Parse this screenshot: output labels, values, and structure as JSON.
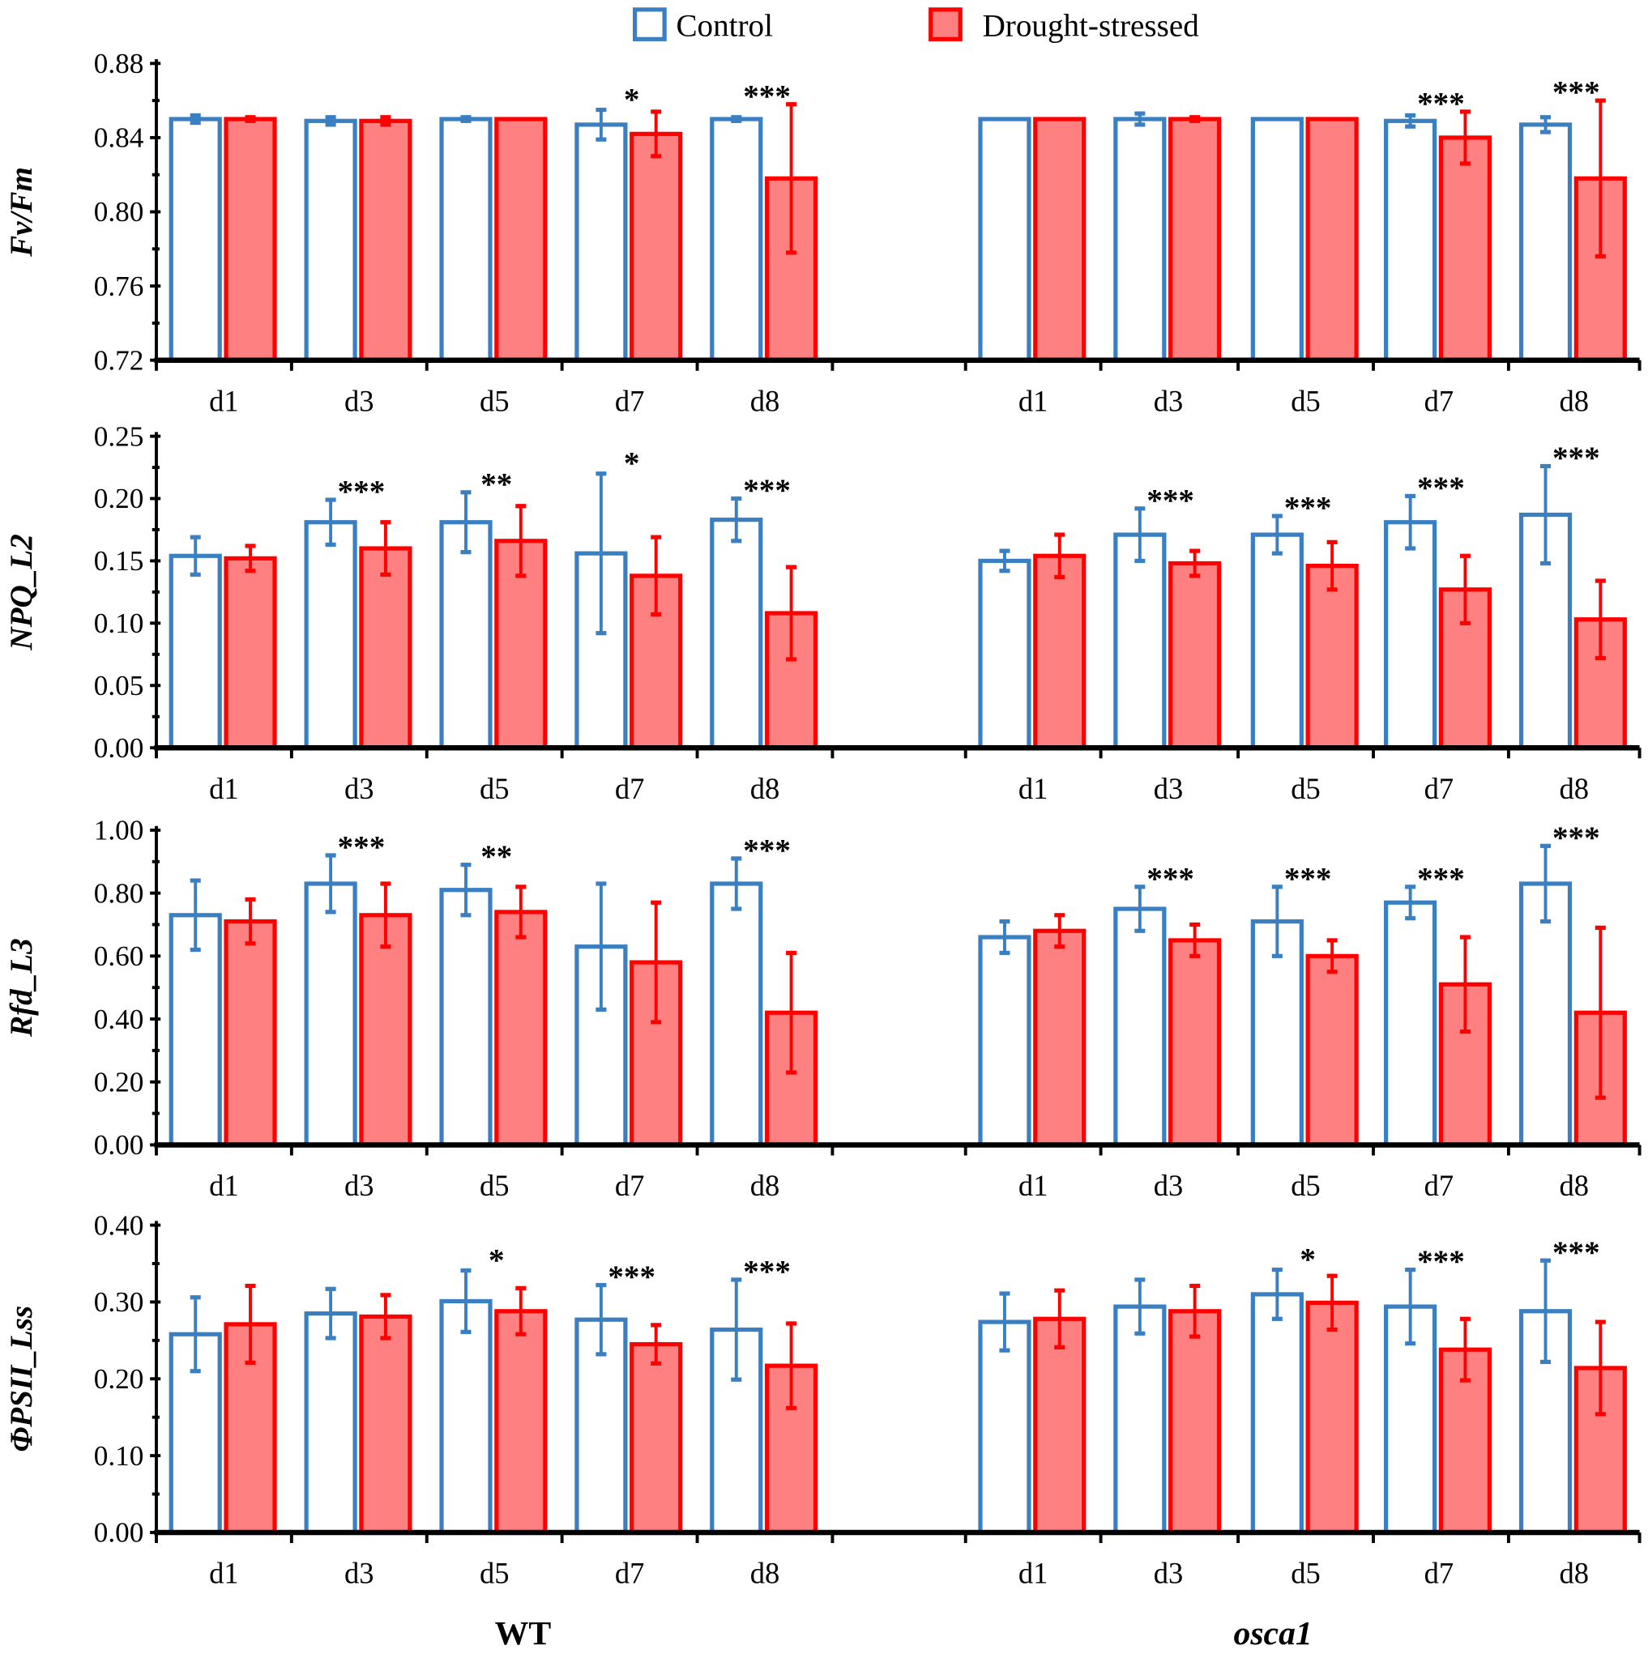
{
  "colors": {
    "control": "#3a7fc1",
    "drought_stroke": "#ff0000",
    "drought_fill": "#ff8080"
  },
  "legend": {
    "control": "Control",
    "drought": "Drought-stressed"
  },
  "groups": [
    "WT",
    "osca1"
  ],
  "chart_data": [
    {
      "type": "bar",
      "ylabel": "Fv/Fm",
      "ylim": [
        0.72,
        0.88
      ],
      "yticks": [
        "0.72",
        "0.76",
        "0.80",
        "0.84",
        "0.88"
      ],
      "ytick_values": [
        0.72,
        0.76,
        0.8,
        0.84,
        0.88
      ],
      "categories": [
        "d1",
        "d3",
        "d5",
        "d7",
        "d8"
      ],
      "series": [
        {
          "name": "Control",
          "group": "WT",
          "values": [
            0.85,
            0.849,
            0.85,
            0.847,
            0.85
          ],
          "errors": [
            0.002,
            0.002,
            0.001,
            0.008,
            0.001
          ]
        },
        {
          "name": "Drought-stressed",
          "group": "WT",
          "values": [
            0.85,
            0.849,
            0.85,
            0.842,
            0.818
          ],
          "errors": [
            0.001,
            0.002,
            0.0,
            0.012,
            0.04
          ]
        },
        {
          "name": "Control",
          "group": "osca1",
          "values": [
            0.85,
            0.85,
            0.85,
            0.849,
            0.847
          ],
          "errors": [
            0.0,
            0.003,
            0.0,
            0.003,
            0.004
          ]
        },
        {
          "name": "Drought-stressed",
          "group": "osca1",
          "values": [
            0.85,
            0.85,
            0.85,
            0.84,
            0.818
          ],
          "errors": [
            0.0,
            0.001,
            0.0,
            0.014,
            0.042
          ]
        }
      ],
      "significance": {
        "WT": [
          "",
          "",
          "",
          "*",
          "***"
        ],
        "osca1": [
          "",
          "",
          "",
          "***",
          "***"
        ]
      }
    },
    {
      "type": "bar",
      "ylabel": "NPQ_L2",
      "ylim": [
        0,
        0.25
      ],
      "yticks": [
        "0.00",
        "0.05",
        "0.10",
        "0.15",
        "0.20",
        "0.25"
      ],
      "ytick_values": [
        0,
        0.05,
        0.1,
        0.15,
        0.2,
        0.25
      ],
      "categories": [
        "d1",
        "d3",
        "d5",
        "d7",
        "d8"
      ],
      "series": [
        {
          "name": "Control",
          "group": "WT",
          "values": [
            0.154,
            0.181,
            0.181,
            0.156,
            0.183
          ],
          "errors": [
            0.015,
            0.018,
            0.024,
            0.064,
            0.017
          ]
        },
        {
          "name": "Drought-stressed",
          "group": "WT",
          "values": [
            0.152,
            0.16,
            0.166,
            0.138,
            0.108
          ],
          "errors": [
            0.01,
            0.021,
            0.028,
            0.031,
            0.037
          ]
        },
        {
          "name": "Control",
          "group": "osca1",
          "values": [
            0.15,
            0.171,
            0.171,
            0.181,
            0.187
          ],
          "errors": [
            0.008,
            0.021,
            0.015,
            0.021,
            0.039
          ]
        },
        {
          "name": "Drought-stressed",
          "group": "osca1",
          "values": [
            0.154,
            0.148,
            0.146,
            0.127,
            0.103
          ],
          "errors": [
            0.017,
            0.01,
            0.019,
            0.027,
            0.031
          ]
        }
      ],
      "significance": {
        "WT": [
          "",
          "***",
          "**",
          "*",
          "***"
        ],
        "osca1": [
          "",
          "***",
          "***",
          "***",
          "***"
        ]
      }
    },
    {
      "type": "bar",
      "ylabel": "Rfd_L3",
      "ylim": [
        0,
        1.0
      ],
      "yticks": [
        "0.00",
        "0.20",
        "0.40",
        "0.60",
        "0.80",
        "1.00"
      ],
      "ytick_values": [
        0,
        0.2,
        0.4,
        0.6,
        0.8,
        1.0
      ],
      "categories": [
        "d1",
        "d3",
        "d5",
        "d7",
        "d8"
      ],
      "series": [
        {
          "name": "Control",
          "group": "WT",
          "values": [
            0.73,
            0.83,
            0.81,
            0.63,
            0.83
          ],
          "errors": [
            0.11,
            0.09,
            0.08,
            0.2,
            0.08
          ]
        },
        {
          "name": "Drought-stressed",
          "group": "WT",
          "values": [
            0.71,
            0.73,
            0.74,
            0.58,
            0.42
          ],
          "errors": [
            0.07,
            0.1,
            0.08,
            0.19,
            0.19
          ]
        },
        {
          "name": "Control",
          "group": "osca1",
          "values": [
            0.66,
            0.75,
            0.71,
            0.77,
            0.83
          ],
          "errors": [
            0.05,
            0.07,
            0.11,
            0.05,
            0.12
          ]
        },
        {
          "name": "Drought-stressed",
          "group": "osca1",
          "values": [
            0.68,
            0.65,
            0.6,
            0.51,
            0.42
          ],
          "errors": [
            0.05,
            0.05,
            0.05,
            0.15,
            0.27
          ]
        }
      ],
      "significance": {
        "WT": [
          "",
          "***",
          "**",
          "",
          "***"
        ],
        "osca1": [
          "",
          "***",
          "***",
          "***",
          "***"
        ]
      }
    },
    {
      "type": "bar",
      "ylabel": "ΦPSII_Lss",
      "ylim": [
        0,
        0.4
      ],
      "yticks": [
        "0.00",
        "0.10",
        "0.20",
        "0.30",
        "0.40"
      ],
      "ytick_values": [
        0,
        0.1,
        0.2,
        0.3,
        0.4
      ],
      "categories": [
        "d1",
        "d3",
        "d5",
        "d7",
        "d8"
      ],
      "series": [
        {
          "name": "Control",
          "group": "WT",
          "values": [
            0.258,
            0.285,
            0.301,
            0.277,
            0.264
          ],
          "errors": [
            0.048,
            0.032,
            0.04,
            0.045,
            0.065
          ]
        },
        {
          "name": "Drought-stressed",
          "group": "WT",
          "values": [
            0.271,
            0.281,
            0.288,
            0.245,
            0.217
          ],
          "errors": [
            0.05,
            0.028,
            0.03,
            0.025,
            0.055
          ]
        },
        {
          "name": "Control",
          "group": "osca1",
          "values": [
            0.274,
            0.294,
            0.31,
            0.294,
            0.288
          ],
          "errors": [
            0.037,
            0.035,
            0.032,
            0.048,
            0.066
          ]
        },
        {
          "name": "Drought-stressed",
          "group": "osca1",
          "values": [
            0.278,
            0.288,
            0.299,
            0.238,
            0.214
          ],
          "errors": [
            0.037,
            0.033,
            0.035,
            0.04,
            0.06
          ]
        }
      ],
      "significance": {
        "WT": [
          "",
          "",
          "*",
          "***",
          "***"
        ],
        "osca1": [
          "",
          "",
          "*",
          "***",
          "***"
        ]
      }
    }
  ]
}
